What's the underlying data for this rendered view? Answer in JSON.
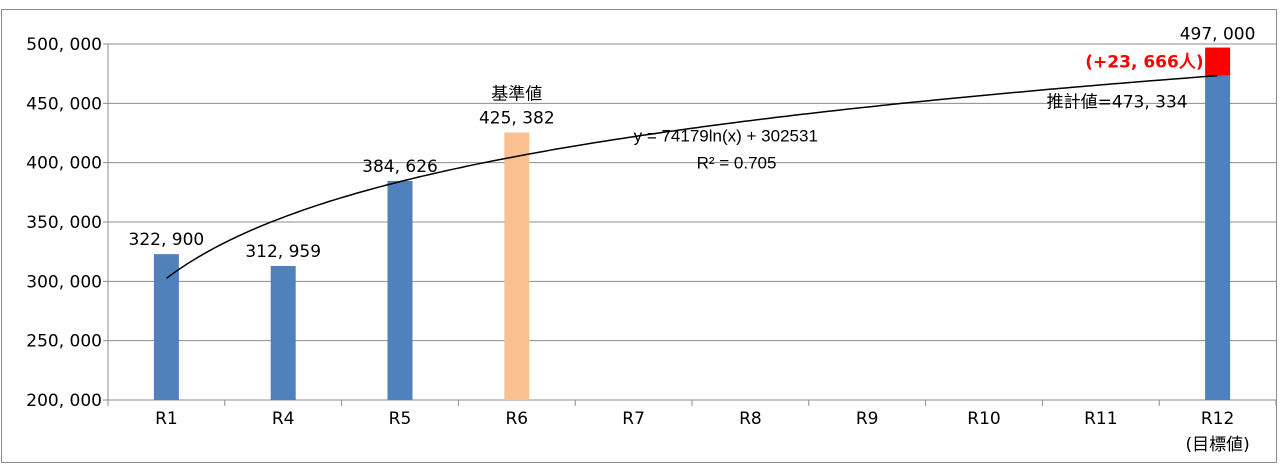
{
  "chart_data": {
    "type": "bar",
    "categories": [
      "R1",
      "R4",
      "R5",
      "R6",
      "R7",
      "R8",
      "R9",
      "R10",
      "R11",
      "R12"
    ],
    "category_sublabels": {
      "R12": "(目標値)"
    },
    "values": [
      322900,
      312959,
      384626,
      425382,
      null,
      null,
      null,
      null,
      null,
      473334
    ],
    "value_labels": [
      "322, 900",
      "312, 959",
      "384, 626",
      "425, 382",
      "",
      "",
      "",
      "",
      "",
      "推計値=473, 334"
    ],
    "highlight": {
      "category": "R6",
      "label": "基準値",
      "color": "#fac090"
    },
    "bar_color": "#4f81bd",
    "target": {
      "category": "R12",
      "base": 473334,
      "value": 497000,
      "label": "497, 000",
      "difference_label": "(+23, 666人)",
      "color": "#ff0000"
    },
    "trendline": {
      "type": "logarithmic",
      "a": 74179,
      "b": 302531,
      "equation": "y = 74179ln(x) + 302531",
      "r_squared": "R² = 0.705",
      "color": "#000000"
    },
    "ylim": [
      200000,
      500000
    ],
    "yticks": [
      200000,
      250000,
      300000,
      350000,
      400000,
      450000,
      500000
    ],
    "ytick_labels": [
      "200, 000",
      "250, 000",
      "300, 000",
      "350, 000",
      "400, 000",
      "450, 000",
      "500, 000"
    ],
    "grid": true,
    "title": "",
    "xlabel": "",
    "ylabel": ""
  }
}
